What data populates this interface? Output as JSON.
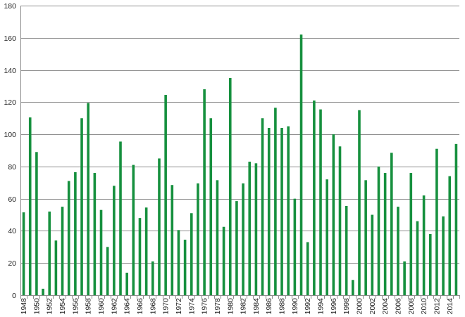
{
  "chart_data": {
    "type": "bar",
    "title": "",
    "xlabel": "",
    "ylabel": "",
    "ylim": [
      0,
      180
    ],
    "yticks": [
      0,
      20,
      40,
      60,
      80,
      100,
      120,
      140,
      160,
      180
    ],
    "grid": true,
    "legend": "none",
    "bar_color": "#16903e",
    "categories": [
      "1948",
      "1949",
      "1950",
      "1951",
      "1952",
      "1953",
      "1954",
      "1955",
      "1956",
      "1957",
      "1958",
      "1959",
      "1960",
      "1961",
      "1962",
      "1963",
      "1964",
      "1965",
      "1966",
      "1967",
      "1968",
      "1969",
      "1970",
      "1971",
      "1972",
      "1973",
      "1974",
      "1975",
      "1976",
      "1977",
      "1978",
      "1979",
      "1980",
      "1981",
      "1982",
      "1983",
      "1984",
      "1985",
      "1986",
      "1987",
      "1988",
      "1989",
      "1990",
      "1991",
      "1992",
      "1993",
      "1994",
      "1995",
      "1996",
      "1997",
      "1998",
      "1999",
      "2000",
      "2001",
      "2002",
      "2003",
      "2004",
      "2005",
      "2006",
      "2007",
      "2008",
      "2009",
      "2010",
      "2011",
      "2012",
      "2013",
      "2014",
      "2015"
    ],
    "xtick_labels": [
      "1948",
      "1950",
      "1952",
      "1954",
      "1956",
      "1958",
      "1960",
      "1962",
      "1964",
      "1966",
      "1968",
      "1970",
      "1972",
      "1974",
      "1976",
      "1978",
      "1980",
      "1982",
      "1984",
      "1986",
      "1988",
      "1990",
      "1992",
      "1994",
      "1996",
      "1998",
      "2000",
      "2002",
      "2004",
      "2006",
      "2008",
      "2010",
      "2012",
      "2014"
    ],
    "values": [
      51.5,
      110.5,
      89,
      4,
      52,
      34,
      55,
      71,
      76.5,
      110,
      119.5,
      76,
      53,
      30,
      68,
      95.5,
      14,
      81,
      48,
      54.5,
      21,
      85,
      124.5,
      68.5,
      40.5,
      34.5,
      51,
      69.5,
      128,
      110,
      71.5,
      42.5,
      135,
      58.5,
      69.5,
      83,
      82,
      110,
      104,
      116.5,
      104,
      105,
      60,
      162,
      33,
      121,
      115.5,
      72,
      100,
      92.5,
      55.5,
      9.5,
      115,
      71.5,
      50,
      80,
      76,
      88.5,
      55,
      21,
      76,
      46,
      62,
      38,
      91,
      49,
      74,
      94
    ]
  }
}
